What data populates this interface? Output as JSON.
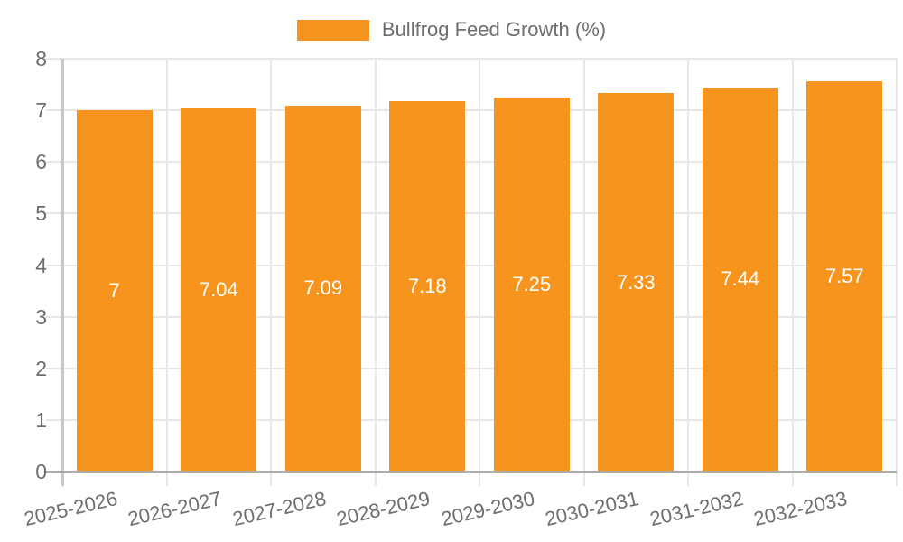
{
  "chart_data": {
    "type": "bar",
    "title": "",
    "legend": "Bullfrog Feed Growth (%)",
    "legend_position": "top",
    "categories": [
      "2025-2026",
      "2026-2027",
      "2027-2028",
      "2028-2029",
      "2029-2030",
      "2030-2031",
      "2031-2032",
      "2032-2033"
    ],
    "values": [
      7,
      7.04,
      7.09,
      7.18,
      7.25,
      7.33,
      7.44,
      7.57
    ],
    "value_labels": [
      "7",
      "7.04",
      "7.09",
      "7.18",
      "7.25",
      "7.33",
      "7.44",
      "7.57"
    ],
    "xlabel": "",
    "ylabel": "",
    "ylim": [
      0,
      8
    ],
    "yticks": [
      0,
      1,
      2,
      3,
      4,
      5,
      6,
      7,
      8
    ],
    "grid": true,
    "x_tick_rotation_deg": -13,
    "colors": {
      "bar": "#F7941D",
      "bar_value_text": "#FFFFFF",
      "axis_text": "#6E6E6E",
      "gridline": "#E7E7E7",
      "x_axis_line": "#ADADAD",
      "y_axis_line": "#C9C9C9",
      "background": "#FFFFFF"
    }
  }
}
